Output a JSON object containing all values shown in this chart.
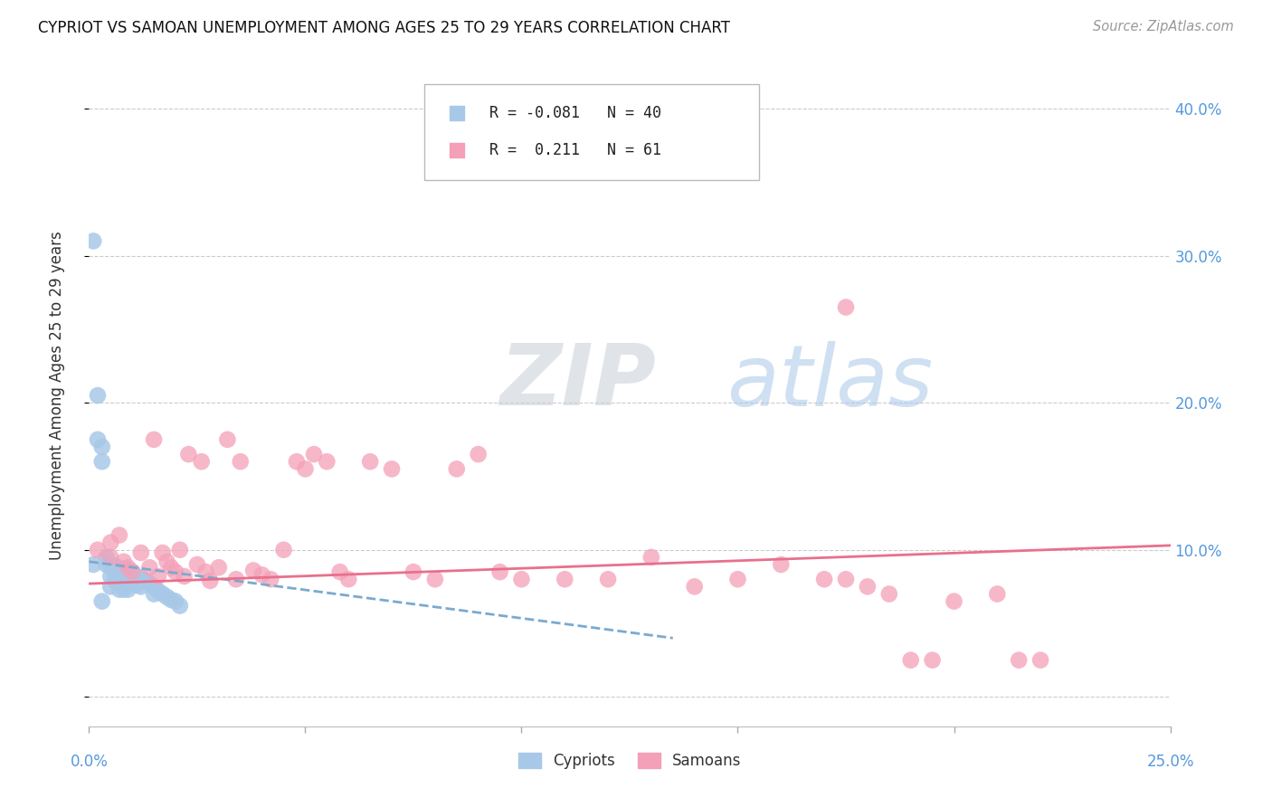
{
  "title": "CYPRIOT VS SAMOAN UNEMPLOYMENT AMONG AGES 25 TO 29 YEARS CORRELATION CHART",
  "source": "Source: ZipAtlas.com",
  "ylabel": "Unemployment Among Ages 25 to 29 years",
  "legend_label_cypriot": "Cypriots",
  "legend_label_samoan": "Samoans",
  "cypriot_color": "#a8c8e8",
  "samoan_color": "#f4a0b8",
  "cypriot_line_color": "#7aaad0",
  "samoan_line_color": "#e8708c",
  "background_color": "#ffffff",
  "xlim": [
    0.0,
    0.25
  ],
  "ylim": [
    -0.02,
    0.43
  ],
  "cypriot_points_x": [
    0.001,
    0.002,
    0.002,
    0.003,
    0.003,
    0.004,
    0.004,
    0.005,
    0.005,
    0.005,
    0.006,
    0.006,
    0.006,
    0.007,
    0.007,
    0.007,
    0.008,
    0.008,
    0.008,
    0.009,
    0.009,
    0.009,
    0.01,
    0.01,
    0.011,
    0.011,
    0.012,
    0.012,
    0.013,
    0.014,
    0.015,
    0.015,
    0.016,
    0.017,
    0.018,
    0.019,
    0.02,
    0.021,
    0.001,
    0.003
  ],
  "cypriot_points_y": [
    0.31,
    0.205,
    0.175,
    0.17,
    0.16,
    0.095,
    0.09,
    0.088,
    0.082,
    0.075,
    0.089,
    0.085,
    0.079,
    0.083,
    0.078,
    0.073,
    0.087,
    0.08,
    0.073,
    0.086,
    0.08,
    0.073,
    0.085,
    0.079,
    0.082,
    0.076,
    0.081,
    0.075,
    0.079,
    0.077,
    0.075,
    0.07,
    0.072,
    0.07,
    0.068,
    0.066,
    0.065,
    0.062,
    0.09,
    0.065
  ],
  "samoan_points_x": [
    0.002,
    0.005,
    0.005,
    0.007,
    0.008,
    0.009,
    0.01,
    0.012,
    0.014,
    0.015,
    0.016,
    0.017,
    0.018,
    0.019,
    0.02,
    0.021,
    0.022,
    0.023,
    0.025,
    0.026,
    0.027,
    0.028,
    0.03,
    0.032,
    0.034,
    0.035,
    0.038,
    0.04,
    0.042,
    0.045,
    0.048,
    0.05,
    0.052,
    0.055,
    0.058,
    0.06,
    0.065,
    0.07,
    0.075,
    0.08,
    0.085,
    0.09,
    0.095,
    0.1,
    0.11,
    0.12,
    0.13,
    0.14,
    0.15,
    0.16,
    0.17,
    0.175,
    0.18,
    0.185,
    0.19,
    0.195,
    0.2,
    0.21,
    0.215,
    0.22,
    0.175
  ],
  "samoan_points_y": [
    0.1,
    0.105,
    0.095,
    0.11,
    0.092,
    0.088,
    0.085,
    0.098,
    0.088,
    0.175,
    0.082,
    0.098,
    0.092,
    0.088,
    0.085,
    0.1,
    0.082,
    0.165,
    0.09,
    0.16,
    0.085,
    0.079,
    0.088,
    0.175,
    0.08,
    0.16,
    0.086,
    0.083,
    0.08,
    0.1,
    0.16,
    0.155,
    0.165,
    0.16,
    0.085,
    0.08,
    0.16,
    0.155,
    0.085,
    0.08,
    0.155,
    0.165,
    0.085,
    0.08,
    0.08,
    0.08,
    0.095,
    0.075,
    0.08,
    0.09,
    0.08,
    0.08,
    0.075,
    0.07,
    0.025,
    0.025,
    0.065,
    0.07,
    0.025,
    0.025,
    0.265
  ],
  "cypriot_trend_x": [
    0.0,
    0.135
  ],
  "cypriot_trend_y": [
    0.092,
    0.04
  ],
  "samoan_trend_x": [
    0.0,
    0.25
  ],
  "samoan_trend_y": [
    0.077,
    0.103
  ]
}
